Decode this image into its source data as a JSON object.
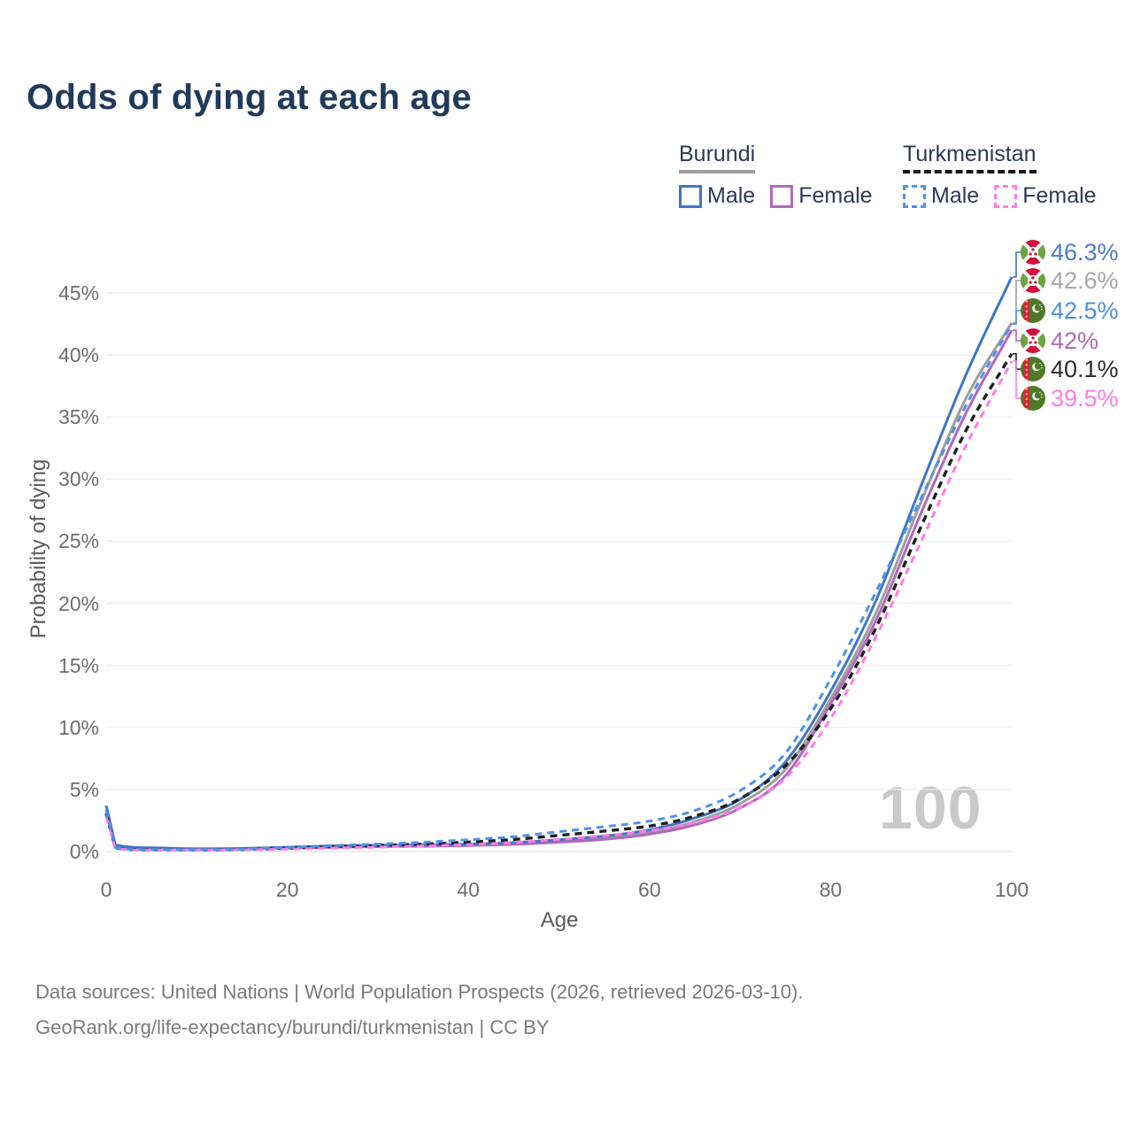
{
  "title": "Odds of dying at each age",
  "watermark": "100",
  "legend": {
    "groups": [
      {
        "country": "Burundi",
        "underline_style": "solid",
        "underline_color": "#9e9e9e",
        "items": [
          {
            "label": "Male",
            "color": "#3e76c4",
            "style": "solid"
          },
          {
            "label": "Female",
            "color": "#b168bb",
            "style": "solid"
          }
        ]
      },
      {
        "country": "Turkmenistan",
        "underline_style": "dashed",
        "underline_color": "#151515",
        "items": [
          {
            "label": "Male",
            "color": "#4e93e8",
            "style": "dashed"
          },
          {
            "label": "Female",
            "color": "#ff7ce6",
            "style": "dashed"
          }
        ]
      }
    ]
  },
  "chart_data": {
    "type": "line",
    "title": "Odds of dying at each age",
    "xlabel": "Age",
    "ylabel": "Probability of dying",
    "xlim": [
      0,
      100
    ],
    "ylim": [
      0,
      48
    ],
    "x_ticks": [
      0,
      20,
      40,
      60,
      80,
      100
    ],
    "y_ticks_percent": [
      0,
      5,
      10,
      15,
      20,
      25,
      30,
      35,
      40,
      45
    ],
    "grid": "horizontal-only",
    "legend_position": "top-right",
    "ages": [
      0,
      1,
      5,
      10,
      15,
      20,
      25,
      30,
      35,
      40,
      45,
      50,
      55,
      60,
      65,
      70,
      75,
      80,
      85,
      90,
      95,
      100
    ],
    "series": [
      {
        "name": "Burundi Both sexes",
        "country": "Burundi",
        "sex": "Both",
        "color": "#9e9e9e",
        "label_color": "#a7a7a7",
        "style": "solid",
        "width": 3,
        "end_label": "42.6%",
        "end_value": 42.6,
        "values": [
          3.4,
          0.5,
          0.28,
          0.2,
          0.23,
          0.31,
          0.4,
          0.45,
          0.49,
          0.54,
          0.65,
          0.85,
          1.1,
          1.55,
          2.4,
          3.85,
          6.6,
          12.3,
          19.2,
          28.2,
          36.6,
          42.6
        ]
      },
      {
        "name": "Burundi Female",
        "country": "Burundi",
        "sex": "Female",
        "color": "#b168bb",
        "label_color": "#b06ab8",
        "style": "solid",
        "width": 3,
        "end_label": "42%",
        "end_value": 42.0,
        "values": [
          3.1,
          0.46,
          0.26,
          0.19,
          0.21,
          0.27,
          0.34,
          0.39,
          0.43,
          0.48,
          0.58,
          0.75,
          0.98,
          1.4,
          2.15,
          3.5,
          6.1,
          11.9,
          18.6,
          27.3,
          35.4,
          42.0
        ]
      },
      {
        "name": "Burundi Male",
        "country": "Burundi",
        "sex": "Male",
        "color": "#3e76c4",
        "label_color": "#4a7cc9",
        "style": "solid",
        "width": 3,
        "end_label": "46.3%",
        "end_value": 46.3,
        "values": [
          3.7,
          0.55,
          0.3,
          0.22,
          0.25,
          0.35,
          0.45,
          0.5,
          0.55,
          0.6,
          0.72,
          0.95,
          1.25,
          1.75,
          2.7,
          4.2,
          7.2,
          12.9,
          20.2,
          29.5,
          38.5,
          46.3
        ]
      },
      {
        "name": "Turkmenistan Both sexes",
        "country": "Turkmenistan",
        "sex": "Both",
        "color": "#1f1f1f",
        "label_color": "#2b2b2b",
        "style": "dashed",
        "width": 3.4,
        "end_label": "40.1%",
        "end_value": 40.1,
        "values": [
          3.05,
          0.28,
          0.14,
          0.13,
          0.16,
          0.27,
          0.39,
          0.49,
          0.6,
          0.76,
          0.97,
          1.3,
          1.65,
          2.05,
          2.85,
          4.25,
          6.9,
          11.5,
          18.0,
          26.2,
          34.0,
          40.1
        ]
      },
      {
        "name": "Turkmenistan Female",
        "country": "Turkmenistan",
        "sex": "Female",
        "color": "#ff7ce6",
        "label_color": "#ff7ce6",
        "style": "dashed",
        "width": 3,
        "end_label": "39.5%",
        "end_value": 39.5,
        "values": [
          2.8,
          0.25,
          0.12,
          0.12,
          0.14,
          0.2,
          0.28,
          0.36,
          0.45,
          0.56,
          0.72,
          0.98,
          1.28,
          1.68,
          2.35,
          3.55,
          5.9,
          10.7,
          17.3,
          25.0,
          32.8,
          39.5
        ]
      },
      {
        "name": "Turkmenistan Male",
        "country": "Turkmenistan",
        "sex": "Male",
        "color": "#4e93e8",
        "label_color": "#4b8fe2",
        "style": "dashed",
        "width": 3,
        "end_label": "42.5%",
        "end_value": 42.5,
        "values": [
          3.3,
          0.3,
          0.15,
          0.14,
          0.18,
          0.33,
          0.48,
          0.6,
          0.75,
          0.95,
          1.2,
          1.6,
          2.0,
          2.45,
          3.3,
          4.9,
          7.9,
          13.9,
          20.9,
          28.5,
          36.0,
          42.5
        ]
      }
    ]
  },
  "footer": {
    "line1": "Data sources: United Nations | World Population Prospects (2026, retrieved 2026-03-10).",
    "line2": "GeoRank.org/life-expectancy/burundi/turkmenistan | CC BY"
  }
}
